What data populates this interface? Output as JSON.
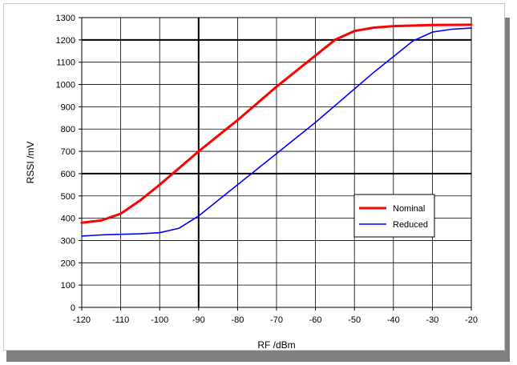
{
  "chart_data": {
    "type": "line",
    "xlabel": "RF /dBm",
    "ylabel": "RSSI /mV",
    "xlim": [
      -120,
      -20
    ],
    "ylim": [
      0,
      1300
    ],
    "xticks": [
      -120,
      -110,
      -100,
      -90,
      -80,
      -70,
      -60,
      -50,
      -40,
      -30,
      -20
    ],
    "yticks": [
      0,
      100,
      200,
      300,
      400,
      500,
      600,
      700,
      800,
      900,
      1000,
      1100,
      1200,
      1300
    ],
    "xtick_labels": [
      "-120",
      "-110",
      "-100",
      "-90",
      "-80",
      "-70",
      "-60",
      "-50",
      "-40",
      "-30",
      "-20"
    ],
    "ytick_labels": [
      "0",
      "100",
      "200",
      "300",
      "400",
      "500",
      "600",
      "700",
      "800",
      "900",
      "1000",
      "1100",
      "1200",
      "1300"
    ],
    "grid": true,
    "emphasized_gridlines": {
      "x": [
        -90
      ],
      "y": [
        600,
        1200
      ]
    },
    "legend_position": "lower-right",
    "series": [
      {
        "name": "Nominal",
        "color": "#ff0000",
        "x": [
          -120,
          -115,
          -110,
          -105,
          -100,
          -95,
          -90,
          -85,
          -80,
          -75,
          -70,
          -65,
          -60,
          -55,
          -50,
          -45,
          -40,
          -30,
          -20
        ],
        "y": [
          380,
          390,
          420,
          480,
          550,
          625,
          700,
          770,
          840,
          915,
          990,
          1060,
          1130,
          1200,
          1240,
          1255,
          1262,
          1267,
          1268
        ]
      },
      {
        "name": "Reduced",
        "color": "#0000ff",
        "x": [
          -120,
          -115,
          -110,
          -105,
          -100,
          -95,
          -90,
          -85,
          -80,
          -75,
          -70,
          -65,
          -60,
          -55,
          -50,
          -45,
          -40,
          -35,
          -30,
          -25,
          -20
        ],
        "y": [
          320,
          325,
          328,
          330,
          335,
          355,
          410,
          480,
          550,
          620,
          690,
          760,
          830,
          905,
          980,
          1055,
          1125,
          1195,
          1235,
          1248,
          1253
        ]
      }
    ]
  }
}
